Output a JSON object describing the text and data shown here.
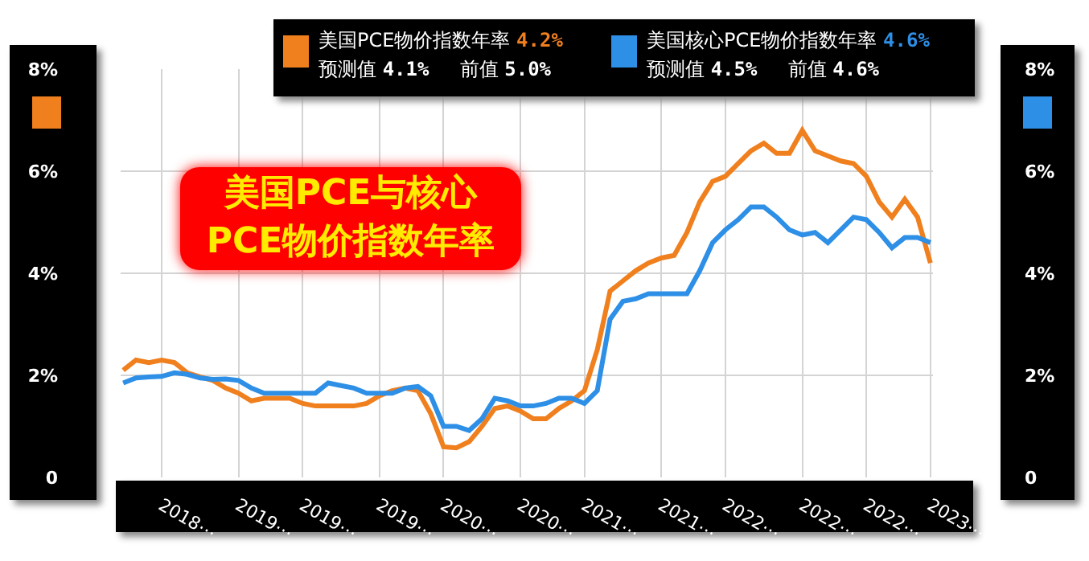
{
  "chart_data": {
    "type": "line",
    "title": "美国PCE与核心PCE物价指数年率",
    "categories": [
      null,
      null,
      null,
      "2018⋯",
      null,
      null,
      null,
      null,
      null,
      "2019⋯",
      null,
      null,
      null,
      null,
      "2019⋯",
      null,
      null,
      null,
      null,
      null,
      "2019⋯",
      null,
      null,
      null,
      null,
      "2020⋯",
      null,
      null,
      null,
      null,
      null,
      "2020⋯",
      null,
      null,
      null,
      null,
      "2021⋯",
      null,
      null,
      null,
      null,
      null,
      "2021⋯",
      null,
      null,
      null,
      null,
      "2022⋯",
      null,
      null,
      null,
      null,
      null,
      "2022⋯",
      null,
      null,
      null,
      null,
      "2022⋯",
      null,
      null,
      null,
      null,
      "2023⋯"
    ],
    "series": [
      {
        "name": "美国PCE物价指数年率",
        "color": "#f07f1e",
        "values": [
          2.1,
          2.3,
          2.25,
          2.3,
          2.25,
          2.05,
          1.97,
          1.9,
          1.75,
          1.65,
          1.5,
          1.55,
          1.55,
          1.55,
          1.45,
          1.4,
          1.4,
          1.4,
          1.4,
          1.45,
          1.6,
          1.7,
          1.75,
          1.7,
          1.25,
          0.6,
          0.58,
          0.7,
          1.0,
          1.35,
          1.4,
          1.3,
          1.15,
          1.15,
          1.35,
          1.5,
          1.7,
          2.5,
          3.65,
          3.85,
          4.05,
          4.2,
          4.3,
          4.35,
          4.8,
          5.4,
          5.8,
          5.9,
          6.15,
          6.4,
          6.55,
          6.35,
          6.35,
          6.8,
          6.4,
          6.3,
          6.2,
          6.15,
          5.9,
          5.4,
          5.1,
          5.45,
          5.1,
          4.2
        ]
      },
      {
        "name": "美国核心PCE物价指数年率",
        "color": "#2e8fe6",
        "axis": "y2",
        "values": [
          1.85,
          1.95,
          1.97,
          1.98,
          2.05,
          2.02,
          1.95,
          1.92,
          1.93,
          1.9,
          1.75,
          1.65,
          1.65,
          1.65,
          1.65,
          1.65,
          1.85,
          1.8,
          1.75,
          1.65,
          1.65,
          1.65,
          1.75,
          1.78,
          1.6,
          1.0,
          1.0,
          0.92,
          1.15,
          1.55,
          1.5,
          1.4,
          1.4,
          1.45,
          1.55,
          1.55,
          1.45,
          1.7,
          3.1,
          3.45,
          3.5,
          3.6,
          3.6,
          3.6,
          3.6,
          4.05,
          4.6,
          4.85,
          5.05,
          5.3,
          5.3,
          5.1,
          4.85,
          4.75,
          4.8,
          4.6,
          4.85,
          5.1,
          5.05,
          4.8,
          4.5,
          4.7,
          4.7,
          4.6
        ]
      }
    ],
    "annotations": [
      "4.2%",
      "预测值",
      "4.1%",
      "前值",
      "5.0%",
      "4.6%",
      "预测值",
      "4.5%",
      "前值",
      "4.6%"
    ],
    "ylim": [
      0,
      8
    ],
    "yticks": [
      0,
      {
        "value": 2,
        "label": "2%"
      },
      {
        "value": 4,
        "label": "4%"
      },
      {
        "value": 6,
        "label": "6%"
      },
      {
        "value": 8,
        "label": "8%"
      }
    ],
    "y2lim": [
      0,
      8
    ],
    "y2ticks": [
      0,
      {
        "value": 2,
        "label": "2%"
      },
      {
        "value": 4,
        "label": "4%"
      },
      {
        "value": 6,
        "label": "6%"
      },
      {
        "value": 8,
        "label": "8%"
      }
    ],
    "grid": true,
    "legend": "top",
    "marker": "none",
    "line_style": "solid"
  }
}
